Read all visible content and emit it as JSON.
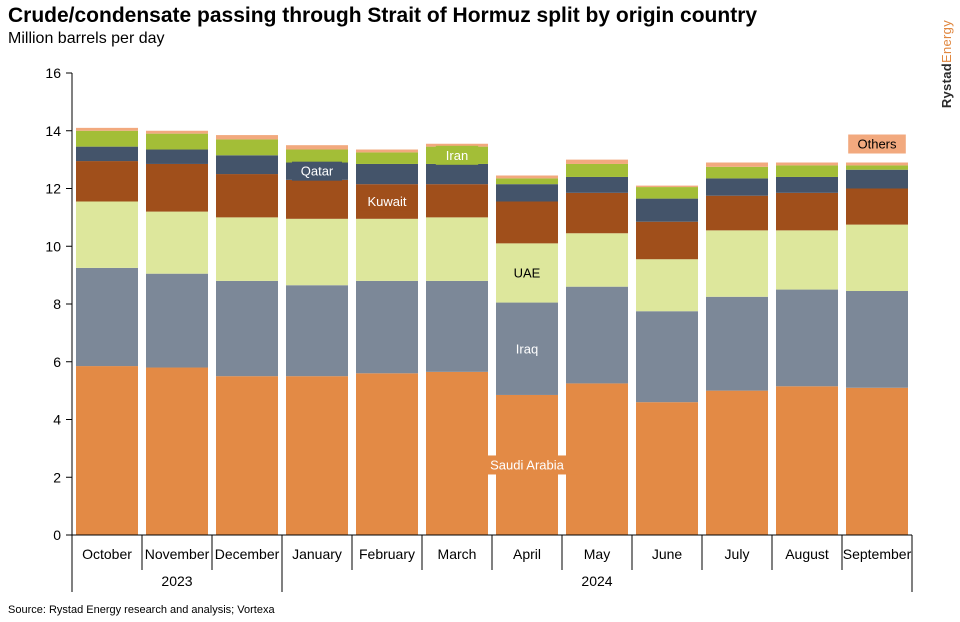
{
  "header": {
    "title": "Crude/condensate passing through Strait of Hormuz split by origin country",
    "subtitle": "Million barrels per day"
  },
  "brand": {
    "part1": "Rystad",
    "part2": "Energy"
  },
  "footer": {
    "source": "Source: Rystad Energy research and analysis; Vortexa"
  },
  "chart_data": {
    "type": "bar",
    "stacked": true,
    "title": "Crude/condensate passing through Strait of Hormuz split by origin country",
    "subtitle": "Million barrels per day",
    "ylim": [
      0,
      16
    ],
    "yticks": [
      0,
      2,
      4,
      6,
      8,
      10,
      12,
      14,
      16
    ],
    "grid": false,
    "categories": [
      "October",
      "November",
      "December",
      "January",
      "February",
      "March",
      "April",
      "May",
      "June",
      "July",
      "August",
      "September"
    ],
    "year_groups": [
      {
        "label": "2023",
        "categories": [
          "October",
          "November",
          "December"
        ]
      },
      {
        "label": "2024",
        "categories": [
          "January",
          "February",
          "March",
          "April",
          "May",
          "June",
          "July",
          "August",
          "September"
        ]
      }
    ],
    "series": [
      {
        "name": "Saudi Arabia",
        "color": "#e38a45",
        "values": [
          5.85,
          5.8,
          5.5,
          5.5,
          5.6,
          5.65,
          4.85,
          5.25,
          4.6,
          5.0,
          5.15,
          5.1
        ]
      },
      {
        "name": "Iraq",
        "color": "#7c8898",
        "values": [
          3.4,
          3.25,
          3.3,
          3.15,
          3.2,
          3.15,
          3.2,
          3.35,
          3.15,
          3.25,
          3.35,
          3.35
        ]
      },
      {
        "name": "UAE",
        "color": "#dde79c",
        "values": [
          2.3,
          2.15,
          2.2,
          2.3,
          2.15,
          2.2,
          2.05,
          1.85,
          1.8,
          2.3,
          2.05,
          2.3
        ]
      },
      {
        "name": "Kuwait",
        "color": "#a04f1b",
        "values": [
          1.4,
          1.65,
          1.5,
          1.35,
          1.2,
          1.15,
          1.45,
          1.4,
          1.3,
          1.2,
          1.3,
          1.25
        ]
      },
      {
        "name": "Qatar",
        "color": "#44546a",
        "values": [
          0.5,
          0.5,
          0.65,
          0.6,
          0.7,
          0.7,
          0.6,
          0.55,
          0.8,
          0.6,
          0.55,
          0.65
        ]
      },
      {
        "name": "Iran",
        "color": "#a3be37",
        "values": [
          0.55,
          0.55,
          0.55,
          0.45,
          0.4,
          0.6,
          0.2,
          0.45,
          0.4,
          0.4,
          0.4,
          0.15
        ]
      },
      {
        "name": "Others",
        "color": "#f2a97e",
        "values": [
          0.1,
          0.1,
          0.15,
          0.15,
          0.1,
          0.1,
          0.1,
          0.15,
          0.05,
          0.15,
          0.1,
          0.1
        ]
      }
    ],
    "series_labels": [
      {
        "series": "Saudi Arabia",
        "text": "Saudi Arabia",
        "category": "April"
      },
      {
        "series": "Iraq",
        "text": "Iraq",
        "category": "April"
      },
      {
        "series": "UAE",
        "text": "UAE",
        "category": "April"
      },
      {
        "series": "Kuwait",
        "text": "Kuwait",
        "category": "February"
      },
      {
        "series": "Qatar",
        "text": "Qatar",
        "category": "January"
      },
      {
        "series": "Iran",
        "text": "Iran",
        "category": "March"
      },
      {
        "series": "Others",
        "text": "Others",
        "category": "September"
      }
    ]
  }
}
